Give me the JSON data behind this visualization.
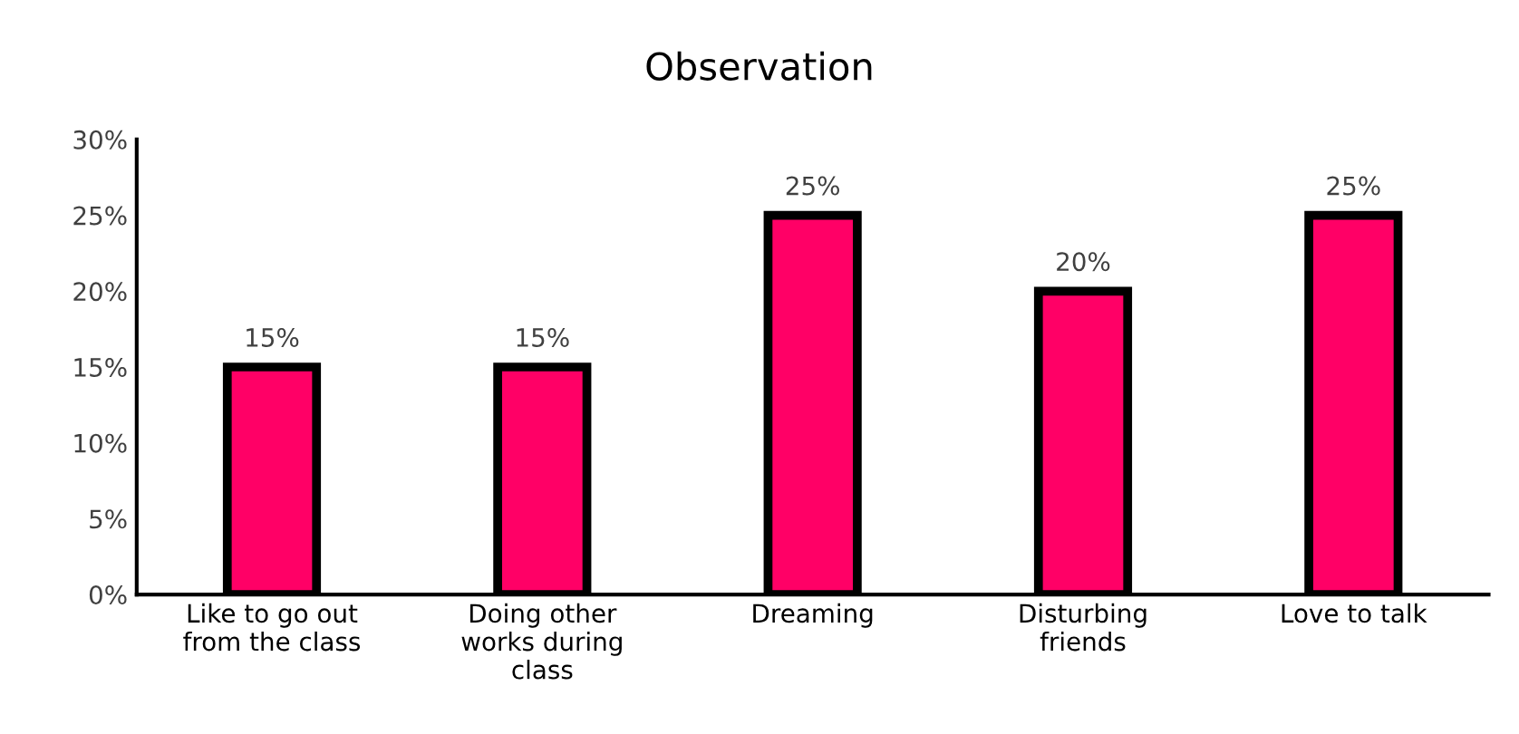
{
  "chart_data": {
    "type": "bar",
    "title": "Observation",
    "categories": [
      "Like to go out from the class",
      "Doing other works during class",
      "Dreaming",
      "Disturbing friends",
      "Love to talk"
    ],
    "values": [
      15,
      15,
      25,
      20,
      25
    ],
    "value_labels": [
      "15%",
      "15%",
      "25%",
      "20%",
      "25%"
    ],
    "color": "#ff0066",
    "ylim": [
      0,
      30
    ],
    "yticks": [
      {
        "value": 0,
        "label": "0%"
      },
      {
        "value": 5,
        "label": "5%"
      },
      {
        "value": 10,
        "label": "10%"
      },
      {
        "value": 15,
        "label": "15%"
      },
      {
        "value": 20,
        "label": "20%"
      },
      {
        "value": 25,
        "label": "25%"
      },
      {
        "value": 30,
        "label": "30%"
      }
    ],
    "grid": false,
    "legend": false
  }
}
